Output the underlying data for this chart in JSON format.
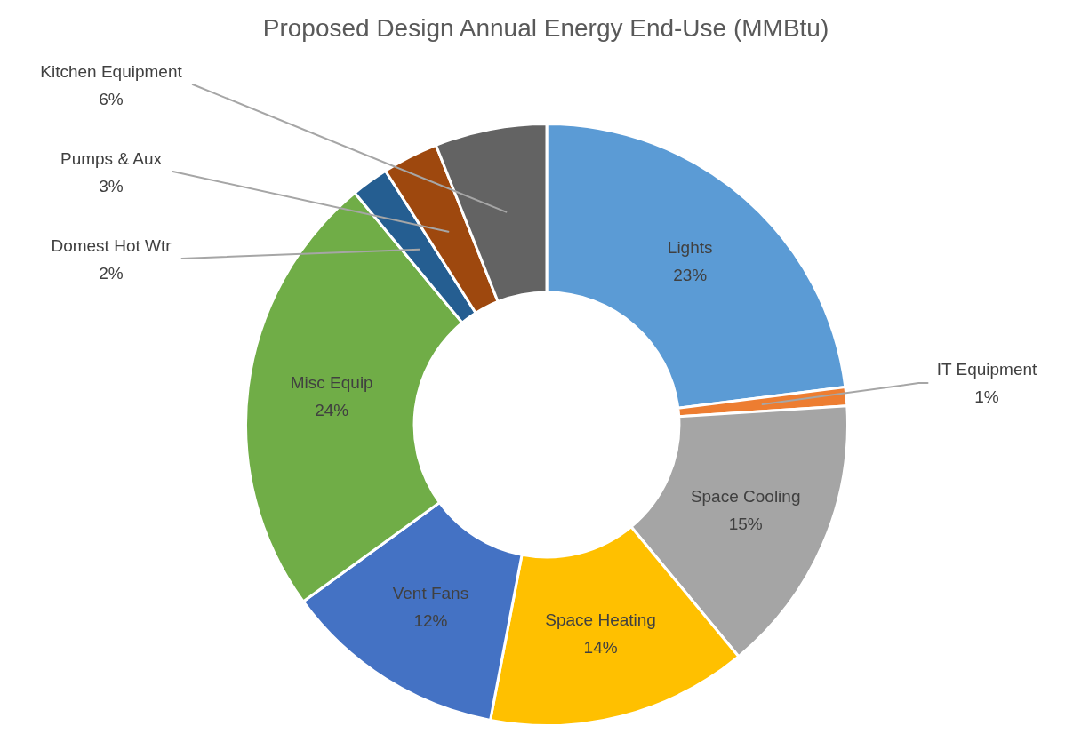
{
  "chart_data": {
    "type": "donut",
    "title": "Proposed Design Annual Energy End-Use (MMBtu)",
    "categories": [
      "Lights",
      "IT Equipment",
      "Space Cooling",
      "Space Heating",
      "Vent Fans",
      "Misc Equip",
      "Domest Hot Wtr",
      "Pumps & Aux",
      "Kitchen Equipment"
    ],
    "values": [
      23,
      1,
      15,
      14,
      12,
      24,
      2,
      3,
      6
    ],
    "value_labels": [
      "23%",
      "1%",
      "15%",
      "14%",
      "12%",
      "24%",
      "2%",
      "3%",
      "6%"
    ],
    "colors": [
      "#5b9bd5",
      "#ed7d31",
      "#a5a5a5",
      "#ffc000",
      "#4472c4",
      "#70ad47",
      "#255e91",
      "#9e480e",
      "#636363"
    ]
  }
}
